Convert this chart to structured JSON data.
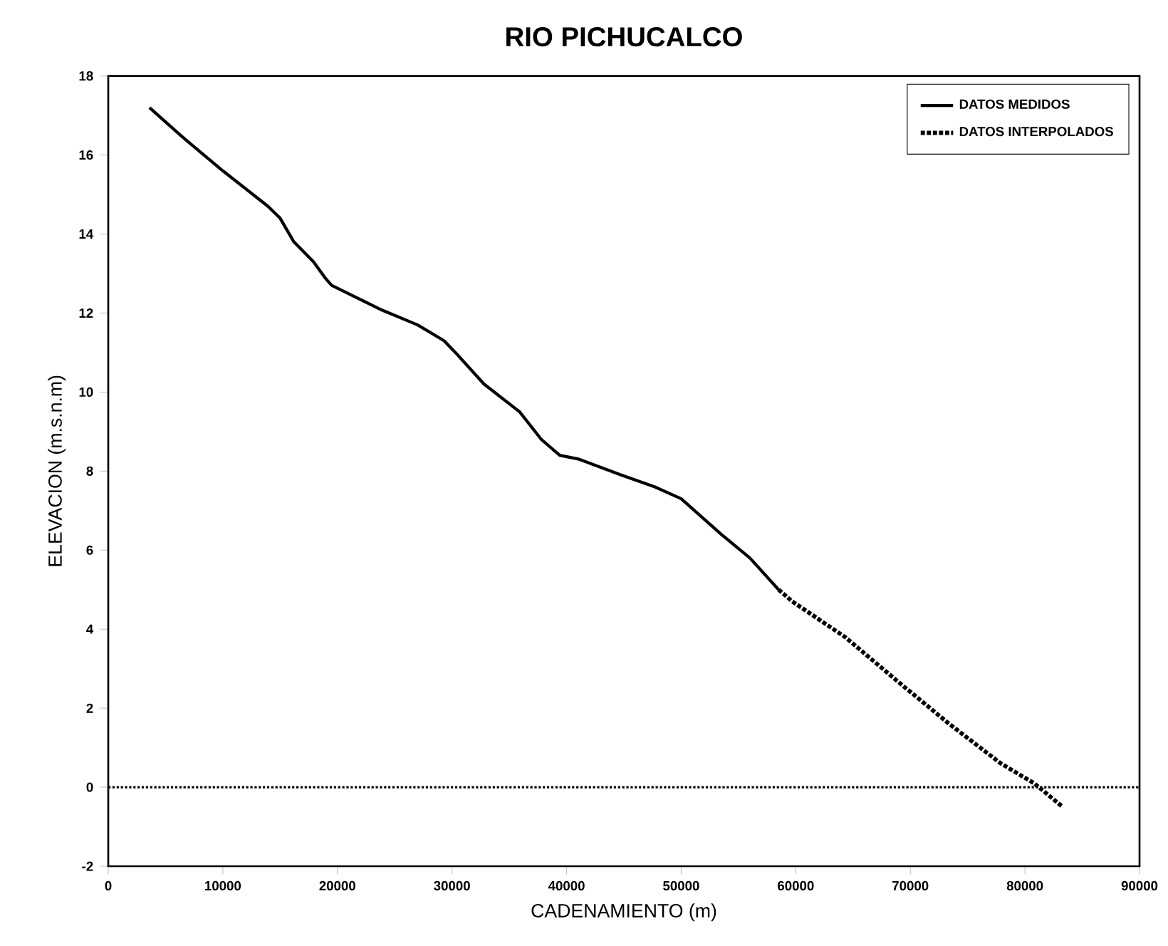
{
  "chart_data": {
    "type": "line",
    "title": "RIO PICHUCALCO",
    "xlabel": "CADENAMIENTO (m)",
    "ylabel": "ELEVACION (m.s.n.m)",
    "xlim": [
      0,
      90000
    ],
    "xticks": [
      0,
      10000,
      20000,
      30000,
      40000,
      50000,
      60000,
      70000,
      80000,
      90000
    ],
    "ylim": [
      -2,
      18
    ],
    "yticks": [
      -2,
      0,
      2,
      4,
      6,
      8,
      10,
      12,
      14,
      16,
      18
    ],
    "grid": false,
    "legend": "top right",
    "series": [
      {
        "name": "DATOS MEDIDOS",
        "color": "#000000",
        "line_style": "solid",
        "x": [
          3600,
          6700,
          10000,
          13950,
          15000,
          16200,
          17900,
          18900,
          19500,
          23700,
          27000,
          29300,
          30300,
          32800,
          35900,
          37800,
          39400,
          41100,
          44800,
          47700,
          50000,
          53500,
          56000,
          58500
        ],
        "values": [
          17.2,
          16.4,
          15.6,
          14.7,
          14.4,
          13.8,
          13.3,
          12.9,
          12.7,
          12.1,
          11.7,
          11.3,
          11.0,
          10.2,
          9.5,
          8.8,
          8.4,
          8.3,
          7.9,
          7.6,
          7.3,
          6.4,
          5.8,
          5.0
        ]
      },
      {
        "name": "DATOS INTERPOLADOS",
        "color": "#000000",
        "line_style": "dotted",
        "x": [
          58500,
          59700,
          64300,
          68800,
          73400,
          77900,
          80800,
          83300
        ],
        "values": [
          5.0,
          4.7,
          3.8,
          2.7,
          1.6,
          0.6,
          0.1,
          -0.5
        ]
      }
    ],
    "ref_lines": [
      {
        "axis": "y",
        "value": 0,
        "color": "#000000",
        "line_style": "dotted"
      }
    ]
  }
}
